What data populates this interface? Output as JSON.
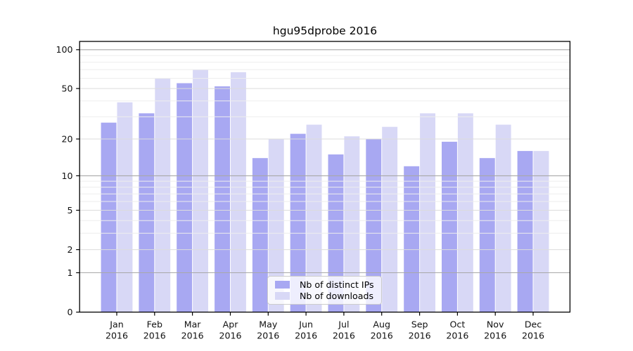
{
  "chart_data": {
    "type": "bar",
    "title": "hgu95dprobe 2016",
    "categories": [
      "Jan",
      "Feb",
      "Mar",
      "Apr",
      "May",
      "Jun",
      "Jul",
      "Aug",
      "Sep",
      "Oct",
      "Nov",
      "Dec"
    ],
    "x_year_label": "2016",
    "series": [
      {
        "name": "Nb of distinct IPs",
        "key": "distinct-ips",
        "color": "#a8a8f2",
        "values": [
          27,
          32,
          55,
          52,
          14,
          22,
          15,
          20,
          12,
          19,
          14,
          16
        ]
      },
      {
        "name": "Nb of downloads",
        "key": "downloads",
        "color": "#d8d8f6",
        "values": [
          39,
          60,
          70,
          67,
          20,
          26,
          21,
          25,
          32,
          32,
          26,
          16
        ]
      }
    ],
    "y_axis": {
      "scale": "log1p",
      "tick_values": [
        0,
        1,
        2,
        5,
        10,
        20,
        50,
        100
      ],
      "tick_labels": [
        "0",
        "1",
        "2",
        "5",
        "10",
        "20",
        "50",
        "100"
      ],
      "grid_major_values": [
        1,
        10,
        100
      ],
      "grid_mid_values": [
        2,
        5,
        20,
        50
      ],
      "grid_minor_values": [
        3,
        4,
        6,
        7,
        8,
        9,
        30,
        40,
        60,
        70,
        80,
        90
      ],
      "range": [
        0,
        115
      ]
    },
    "legend_position": "lower center",
    "grid_over_bars": true,
    "colors": {
      "grid_major": "#a8a8a8",
      "grid_mid": "#dcdcdc",
      "grid_minor": "#ededed",
      "axis": "#000000",
      "legend_border": "#cccccc",
      "background": "#ffffff"
    }
  }
}
